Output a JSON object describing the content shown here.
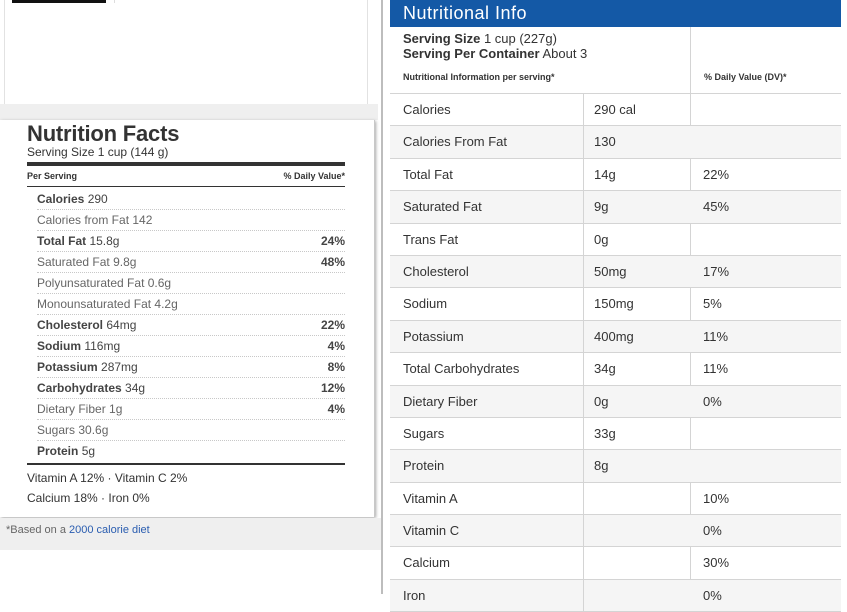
{
  "nutrition_facts": {
    "title": "Nutrition Facts",
    "serving_size": "Serving Size 1 cup (144 g)",
    "per_serving": "Per Serving",
    "daily_value_header": "% Daily Value*",
    "rows": [
      {
        "name": "Calories",
        "value": "290",
        "percent": ""
      },
      {
        "name": "Calories from Fat",
        "value": "142",
        "percent": ""
      },
      {
        "name": "Total Fat",
        "value": "15.8g",
        "percent": "24%"
      },
      {
        "name": "Saturated Fat",
        "value": "9.8g",
        "percent": "48%"
      },
      {
        "name": "Polyunsaturated Fat",
        "value": "0.6g",
        "percent": ""
      },
      {
        "name": "Monounsaturated Fat",
        "value": "4.2g",
        "percent": ""
      },
      {
        "name": "Cholesterol",
        "value": "64mg",
        "percent": "22%"
      },
      {
        "name": "Sodium",
        "value": "116mg",
        "percent": "4%"
      },
      {
        "name": "Potassium",
        "value": "287mg",
        "percent": "8%"
      },
      {
        "name": "Carbohydrates",
        "value": "34g",
        "percent": "12%"
      },
      {
        "name": "Dietary Fiber",
        "value": "1g",
        "percent": "4%"
      },
      {
        "name": "Sugars",
        "value": "30.6g",
        "percent": ""
      },
      {
        "name": "Protein",
        "value": "5g",
        "percent": ""
      }
    ],
    "vitamins_line1": "Vitamin A 12% · Vitamin C 2%",
    "vitamins_line2": "Calcium 18% · Iron 0%",
    "based_on_prefix": "*Based on a ",
    "based_on_link": "2000 calorie diet"
  },
  "nutritional_info": {
    "title": "Nutritional Info",
    "serving_size_label": "Serving Size",
    "serving_size_value": "1 cup (227g)",
    "servings_label": "Serving Per Container",
    "servings_value": "About 3",
    "info_header": "Nutritional Information per serving*",
    "dv_header": "% Daily Value (DV)*",
    "rows": [
      {
        "name": "Calories",
        "amount": "290 cal",
        "dv": ""
      },
      {
        "name": "Calories From Fat",
        "amount": "130",
        "dv": ""
      },
      {
        "name": "Total Fat",
        "amount": "14g",
        "dv": "22%"
      },
      {
        "name": "Saturated Fat",
        "amount": "9g",
        "dv": "45%"
      },
      {
        "name": "Trans Fat",
        "amount": "0g",
        "dv": ""
      },
      {
        "name": "Cholesterol",
        "amount": "50mg",
        "dv": "17%"
      },
      {
        "name": "Sodium",
        "amount": "150mg",
        "dv": "5%"
      },
      {
        "name": "Potassium",
        "amount": "400mg",
        "dv": "11%"
      },
      {
        "name": "Total Carbohydrates",
        "amount": "34g",
        "dv": "11%"
      },
      {
        "name": "Dietary Fiber",
        "amount": "0g",
        "dv": "0%"
      },
      {
        "name": "Sugars",
        "amount": "33g",
        "dv": ""
      },
      {
        "name": "Protein",
        "amount": "8g",
        "dv": ""
      },
      {
        "name": "Vitamin A",
        "amount": "",
        "dv": "10%"
      },
      {
        "name": "Vitamin C",
        "amount": "",
        "dv": "0%"
      },
      {
        "name": "Calcium",
        "amount": "",
        "dv": "30%"
      },
      {
        "name": "Iron",
        "amount": "",
        "dv": "0%"
      }
    ]
  },
  "colors": {
    "header_blue": "#1459a6",
    "link_blue": "#2a5db0"
  }
}
